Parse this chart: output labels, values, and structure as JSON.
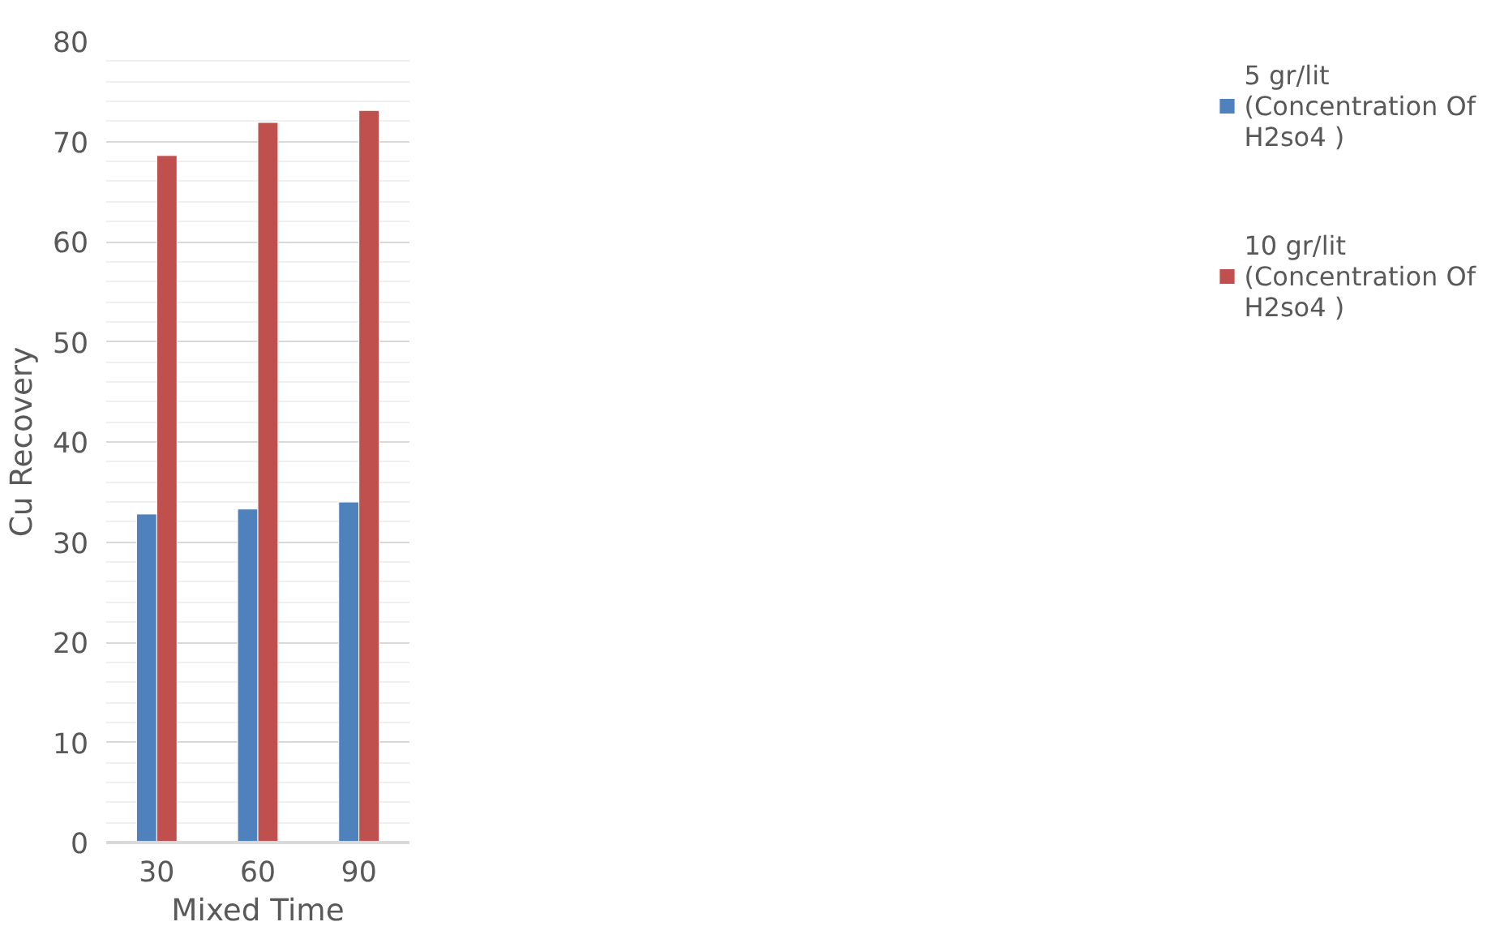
{
  "chart_data": {
    "type": "bar",
    "xlabel": "Mixed Time",
    "ylabel": "Cu Recovery",
    "categories": [
      "30",
      "60",
      "90"
    ],
    "series": [
      {
        "name": "5 gr/lit (Concentration Of H2so4 )",
        "color": "#4f81bd",
        "values": [
          32.8,
          33.3,
          34.0
        ]
      },
      {
        "name": "10 gr/lit (Concentration Of H2so4 )",
        "color": "#c0504d",
        "values": [
          68.6,
          71.9,
          73.1
        ]
      }
    ],
    "ylim": [
      0,
      80
    ],
    "yticks": [
      0,
      10,
      20,
      30,
      40,
      50,
      60,
      70,
      80
    ],
    "grid": "y",
    "legend": "right"
  }
}
